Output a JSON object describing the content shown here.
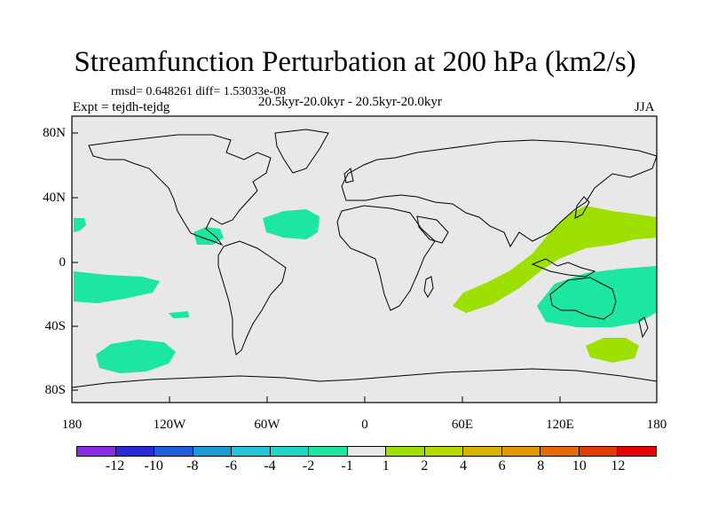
{
  "title": "Streamfunction Perturbation at 200 hPa (km2/s)",
  "stats": "rmsd= 0.648261 diff= 1.53033e-08",
  "experiment": "Expt = tejdh-tejdg",
  "period": "20.5kyr-20.0kyr - 20.5kyr-20.0kyr",
  "season": "JJA",
  "y_ticks": [
    "80N",
    "40N",
    "0",
    "40S",
    "80S"
  ],
  "x_ticks": [
    "180",
    "120W",
    "60W",
    "0",
    "60E",
    "120E",
    "180"
  ],
  "colorbar": {
    "colors": [
      "#8a2be2",
      "#2929d8",
      "#1d5fd8",
      "#1b9ad6",
      "#25c4d8",
      "#1fd6c8",
      "#1de6a0",
      "#e8e8e8",
      "#9de000",
      "#b8d600",
      "#d6b400",
      "#e69600",
      "#e66a00",
      "#e23c00",
      "#e60000"
    ],
    "labels": [
      "-12",
      "-10",
      "-8",
      "-6",
      "-4",
      "-2",
      "-1",
      "1",
      "2",
      "4",
      "6",
      "8",
      "10",
      "12"
    ]
  },
  "map_colors": {
    "background": "#e8e8e8",
    "negative": "#1de6a0",
    "positive": "#9de000",
    "coast": "#000000"
  }
}
